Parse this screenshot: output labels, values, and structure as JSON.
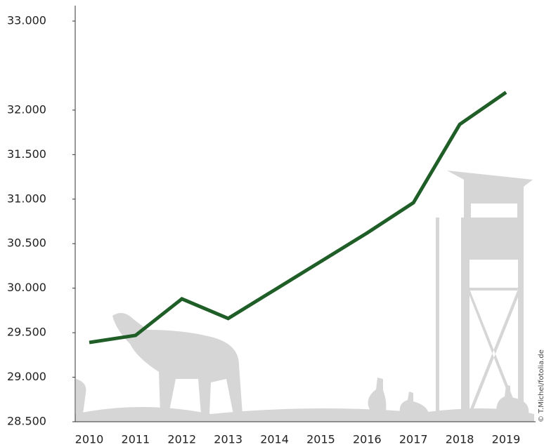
{
  "chart_data": {
    "type": "line",
    "categories": [
      "2010",
      "2011",
      "2012",
      "2013",
      "2014",
      "2015",
      "2016",
      "2017",
      "2018",
      "2019"
    ],
    "series": [
      {
        "color": "#1f5e27",
        "values": [
          29390,
          29470,
          29880,
          29660,
          29980,
          30300,
          30620,
          30960,
          31840,
          32200
        ]
      }
    ],
    "ylim": [
      28500,
      33000
    ],
    "yticks": [
      {
        "value": 28500,
        "label": "28.500"
      },
      {
        "value": 29000,
        "label": "29.000"
      },
      {
        "value": 29500,
        "label": "29.500"
      },
      {
        "value": 30000,
        "label": "30.000"
      },
      {
        "value": 30500,
        "label": "30.500"
      },
      {
        "value": 31000,
        "label": "31.000"
      },
      {
        "value": 31500,
        "label": "31.500"
      },
      {
        "value": 32000,
        "label": "32.000"
      },
      {
        "value": 33000,
        "label": "33.000"
      }
    ],
    "grid": false,
    "credit": "© T.Michel/fotolia.de"
  }
}
